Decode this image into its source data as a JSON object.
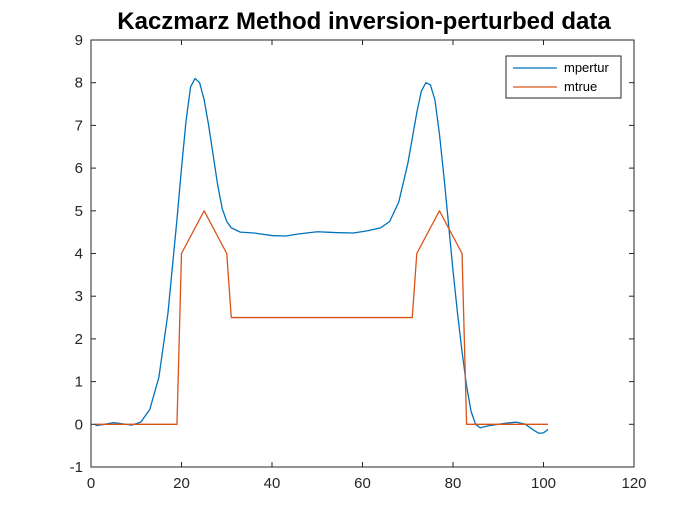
{
  "chart_data": {
    "type": "line",
    "title": "Kaczmarz Method inversion-perturbed data",
    "xlabel": "",
    "ylabel": "",
    "xlim": [
      0,
      120
    ],
    "ylim": [
      -1,
      9
    ],
    "xticks": [
      0,
      20,
      40,
      60,
      80,
      100,
      120
    ],
    "yticks": [
      -1,
      0,
      1,
      2,
      3,
      4,
      5,
      6,
      7,
      8,
      9
    ],
    "grid": false,
    "legend_position": "top-right",
    "series": [
      {
        "name": "mpertur",
        "color": "#0072BD",
        "points": [
          [
            1,
            -0.03
          ],
          [
            3,
            0.0
          ],
          [
            5,
            0.04
          ],
          [
            7,
            0.01
          ],
          [
            9,
            -0.02
          ],
          [
            11,
            0.05
          ],
          [
            13,
            0.35
          ],
          [
            15,
            1.1
          ],
          [
            17,
            2.6
          ],
          [
            19,
            4.8
          ],
          [
            20,
            6.0
          ],
          [
            21,
            7.1
          ],
          [
            22,
            7.9
          ],
          [
            23,
            8.1
          ],
          [
            24,
            8.0
          ],
          [
            25,
            7.6
          ],
          [
            26,
            7.0
          ],
          [
            27,
            6.3
          ],
          [
            28,
            5.6
          ],
          [
            29,
            5.05
          ],
          [
            30,
            4.75
          ],
          [
            31,
            4.6
          ],
          [
            33,
            4.5
          ],
          [
            36,
            4.48
          ],
          [
            40,
            4.42
          ],
          [
            43,
            4.41
          ],
          [
            46,
            4.46
          ],
          [
            50,
            4.51
          ],
          [
            54,
            4.49
          ],
          [
            58,
            4.48
          ],
          [
            61,
            4.53
          ],
          [
            64,
            4.6
          ],
          [
            66,
            4.75
          ],
          [
            68,
            5.2
          ],
          [
            70,
            6.1
          ],
          [
            72,
            7.3
          ],
          [
            73,
            7.8
          ],
          [
            74,
            8.0
          ],
          [
            75,
            7.95
          ],
          [
            76,
            7.6
          ],
          [
            77,
            6.8
          ],
          [
            78,
            5.8
          ],
          [
            79,
            4.7
          ],
          [
            80,
            3.6
          ],
          [
            81,
            2.6
          ],
          [
            82,
            1.7
          ],
          [
            83,
            0.9
          ],
          [
            84,
            0.3
          ],
          [
            85,
            0.0
          ],
          [
            86,
            -0.08
          ],
          [
            88,
            -0.03
          ],
          [
            90,
            0.0
          ],
          [
            92,
            0.03
          ],
          [
            94,
            0.05
          ],
          [
            96,
            0.0
          ],
          [
            98,
            -0.15
          ],
          [
            99,
            -0.21
          ],
          [
            100,
            -0.2
          ],
          [
            101,
            -0.12
          ]
        ]
      },
      {
        "name": "mtrue",
        "color": "#D95319",
        "points": [
          [
            1,
            0
          ],
          [
            19,
            0
          ],
          [
            20,
            4
          ],
          [
            25,
            5
          ],
          [
            30,
            4
          ],
          [
            31,
            2.5
          ],
          [
            71,
            2.5
          ],
          [
            72,
            4
          ],
          [
            77,
            5
          ],
          [
            82,
            4
          ],
          [
            83,
            0
          ],
          [
            101,
            0
          ]
        ]
      }
    ]
  }
}
